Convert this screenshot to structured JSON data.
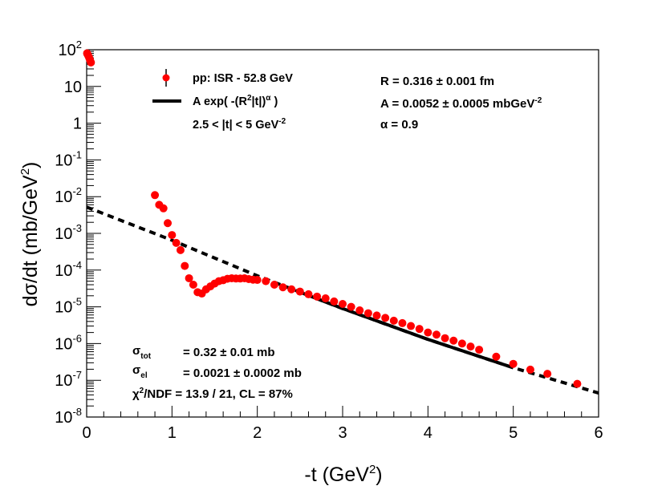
{
  "chart_data": {
    "type": "scatter",
    "xlabel": "-t (GeV^2)",
    "ylabel": "dσ/dt (mb/GeV^2)",
    "xlim": [
      0,
      6
    ],
    "ylim_log10": [
      -8,
      2
    ],
    "xscale": "linear",
    "yscale": "log",
    "x_ticks": [
      "0",
      "1",
      "2",
      "3",
      "4",
      "5",
      "6"
    ],
    "y_ticks": [
      {
        "base": "10",
        "exp": "-8"
      },
      {
        "base": "10",
        "exp": "-7"
      },
      {
        "base": "10",
        "exp": "-6"
      },
      {
        "base": "10",
        "exp": "-5"
      },
      {
        "base": "10",
        "exp": "-4"
      },
      {
        "base": "10",
        "exp": "-3"
      },
      {
        "base": "10",
        "exp": "-2"
      },
      {
        "base": "10",
        "exp": "-1"
      },
      {
        "base": "1",
        "exp": ""
      },
      {
        "base": "10",
        "exp": ""
      },
      {
        "base": "10",
        "exp": "2"
      }
    ],
    "series": [
      {
        "name": "pp: ISR - 52.8 GeV",
        "kind": "points",
        "color": "#ff0000",
        "x": [
          0.005,
          0.01,
          0.02,
          0.03,
          0.04,
          0.05,
          0.8,
          0.85,
          0.9,
          0.95,
          1.0,
          1.05,
          1.1,
          1.15,
          1.2,
          1.25,
          1.3,
          1.35,
          1.4,
          1.45,
          1.5,
          1.55,
          1.6,
          1.65,
          1.7,
          1.75,
          1.8,
          1.85,
          1.9,
          1.95,
          2.0,
          2.1,
          2.2,
          2.3,
          2.4,
          2.5,
          2.6,
          2.7,
          2.8,
          2.9,
          3.0,
          3.1,
          3.2,
          3.3,
          3.4,
          3.5,
          3.6,
          3.7,
          3.8,
          3.9,
          4.0,
          4.1,
          4.2,
          4.3,
          4.4,
          4.5,
          4.6,
          4.8,
          5.0,
          5.2,
          5.4,
          5.75
        ],
        "y": [
          80,
          75,
          68,
          60,
          52,
          45,
          0.011,
          0.006,
          0.0048,
          0.0019,
          0.0009,
          0.00055,
          0.00035,
          0.00013,
          6e-05,
          4e-05,
          2.5e-05,
          2.3e-05,
          3e-05,
          3.6e-05,
          4.3e-05,
          5e-05,
          5.3e-05,
          5.8e-05,
          6e-05,
          5.9e-05,
          5.9e-05,
          6e-05,
          5.7e-05,
          5.5e-05,
          5.4e-05,
          5e-05,
          4e-05,
          3.4e-05,
          3e-05,
          2.6e-05,
          2.2e-05,
          1.9e-05,
          1.7e-05,
          1.4e-05,
          1.2e-05,
          1e-05,
          8e-06,
          6.7e-06,
          5.8e-06,
          5e-06,
          4.2e-06,
          3.6e-06,
          3e-06,
          2.5e-06,
          2e-06,
          1.75e-06,
          1.4e-06,
          1.2e-06,
          1e-06,
          8.3e-07,
          6.8e-07,
          4.4e-07,
          2.8e-07,
          1.95e-07,
          1.5e-07,
          8e-08
        ]
      },
      {
        "name": "A exp( -(R²|t|)^α )",
        "kind": "line",
        "color": "#000000",
        "solid_range": [
          2.5,
          5.0
        ],
        "dashed_range": [
          0,
          6
        ],
        "x": [
          0,
          1,
          2,
          3,
          4,
          5,
          6
        ],
        "y": [
          0.0052,
          0.00065,
          7e-05,
          9e-06,
          1.3e-06,
          2.2e-07,
          4.5e-08
        ]
      }
    ],
    "legend": {
      "entry1": "pp: ISR - 52.8 GeV",
      "entry2_main": "A exp( -(R",
      "entry2_sup1": "2",
      "entry2_mid": "|t|)",
      "entry2_sup2": "α",
      "entry2_end": " )",
      "range_main": "2.5 < |t| < 5  GeV",
      "range_sup": "-2"
    },
    "fit_params": {
      "R": "R = 0.316  ± 0.001 fm",
      "A_main": "A = 0.0052  ± 0.0005 mbGeV",
      "A_sup": "-2",
      "alpha": "α  = 0.9"
    },
    "stats": {
      "sigma_tot_sym": "σ",
      "sigma_tot_sub": "tot",
      "sigma_tot_val": "= 0.32  ± 0.01 mb",
      "sigma_el_sym": "σ",
      "sigma_el_sub": "el",
      "sigma_el_val": "= 0.0021 ± 0.0002 mb",
      "chi_sym": "χ",
      "chi_sup": "2",
      "chi_rest": "/NDF = 13.9 / 21,  CL = 87%"
    },
    "axis_titles": {
      "x_main": "-t (GeV",
      "x_sup": "2",
      "x_end": ")",
      "y_main": "dσ/dt (mb/GeV",
      "y_sup": "2",
      "y_end": ")"
    }
  }
}
